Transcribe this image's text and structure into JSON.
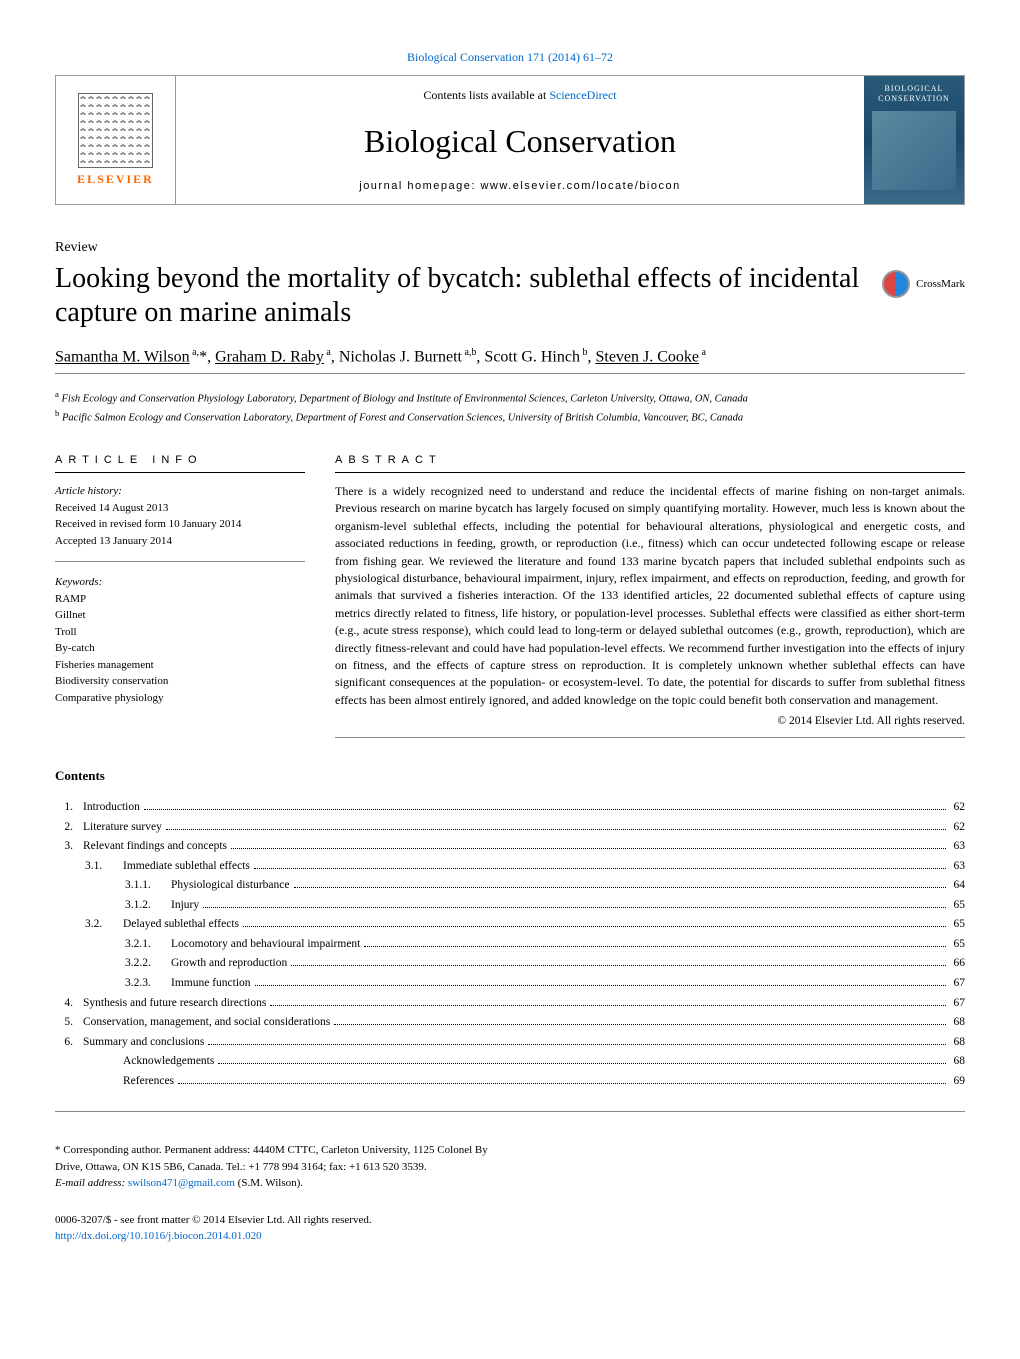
{
  "citation": "Biological Conservation 171 (2014) 61–72",
  "header": {
    "contents_prefix": "Contents lists available at ",
    "contents_link": "ScienceDirect",
    "journal_name": "Biological Conservation",
    "homepage_prefix": "journal homepage: ",
    "homepage_url": "www.elsevier.com/locate/biocon",
    "publisher": "ELSEVIER",
    "cover_title": "BIOLOGICAL CONSERVATION"
  },
  "article_type": "Review",
  "crossmark": "CrossMark",
  "title": "Looking beyond the mortality of bycatch: sublethal effects of incidental capture on marine animals",
  "authors_html": "<span class=\"underline\">Samantha M. Wilson</span><sup> a,</sup>*, <span class=\"underline\">Graham D. Raby</span><sup> a</sup>, Nicholas J. Burnett<sup> a,b</sup>, Scott G. Hinch<sup> b</sup>, <span class=\"underline\">Steven J. Cooke</span><sup> a</sup>",
  "affiliations": [
    {
      "sup": "a",
      "text": "Fish Ecology and Conservation Physiology Laboratory, Department of Biology and Institute of Environmental Sciences, Carleton University, Ottawa, ON, Canada"
    },
    {
      "sup": "b",
      "text": "Pacific Salmon Ecology and Conservation Laboratory, Department of Forest and Conservation Sciences, University of British Columbia, Vancouver, BC, Canada"
    }
  ],
  "info": {
    "head": "ARTICLE INFO",
    "history_label": "Article history:",
    "history": [
      "Received 14 August 2013",
      "Received in revised form 10 January 2014",
      "Accepted 13 January 2014"
    ],
    "keywords_label": "Keywords:",
    "keywords": [
      "RAMP",
      "Gillnet",
      "Troll",
      "By-catch",
      "Fisheries management",
      "Biodiversity conservation",
      "Comparative physiology"
    ]
  },
  "abstract": {
    "head": "ABSTRACT",
    "text": "There is a widely recognized need to understand and reduce the incidental effects of marine fishing on non-target animals. Previous research on marine bycatch has largely focused on simply quantifying mortality. However, much less is known about the organism-level sublethal effects, including the potential for behavioural alterations, physiological and energetic costs, and associated reductions in feeding, growth, or reproduction (i.e., fitness) which can occur undetected following escape or release from fishing gear. We reviewed the literature and found 133 marine bycatch papers that included sublethal endpoints such as physiological disturbance, behavioural impairment, injury, reflex impairment, and effects on reproduction, feeding, and growth for animals that survived a fisheries interaction. Of the 133 identified articles, 22 documented sublethal effects of capture using metrics directly related to fitness, life history, or population-level processes. Sublethal effects were classified as either short-term (e.g., acute stress response), which could lead to long-term or delayed sublethal outcomes (e.g., growth, reproduction), which are directly fitness-relevant and could have had population-level effects. We recommend further investigation into the effects of injury on fitness, and the effects of capture stress on reproduction. It is completely unknown whether sublethal effects can have significant consequences at the population- or ecosystem-level. To date, the potential for discards to suffer from sublethal fitness effects has been almost entirely ignored, and added knowledge on the topic could benefit both conservation and management.",
    "copyright": "© 2014 Elsevier Ltd. All rights reserved."
  },
  "contents_heading": "Contents",
  "toc": [
    {
      "num": "1.",
      "label": "Introduction",
      "page": "62",
      "level": 0
    },
    {
      "num": "2.",
      "label": "Literature survey",
      "page": "62",
      "level": 0
    },
    {
      "num": "3.",
      "label": "Relevant findings and concepts",
      "page": "63",
      "level": 0
    },
    {
      "num": "3.1.",
      "label": "Immediate sublethal effects",
      "page": "63",
      "level": 1
    },
    {
      "num": "3.1.1.",
      "label": "Physiological disturbance",
      "page": "64",
      "level": 2
    },
    {
      "num": "3.1.2.",
      "label": "Injury",
      "page": "65",
      "level": 2
    },
    {
      "num": "3.2.",
      "label": "Delayed sublethal effects",
      "page": "65",
      "level": 1
    },
    {
      "num": "3.2.1.",
      "label": "Locomotory and behavioural impairment",
      "page": "65",
      "level": 2
    },
    {
      "num": "3.2.2.",
      "label": "Growth and reproduction",
      "page": "66",
      "level": 2
    },
    {
      "num": "3.2.3.",
      "label": "Immune function",
      "page": "67",
      "level": 2
    },
    {
      "num": "4.",
      "label": "Synthesis and future research directions",
      "page": "67",
      "level": 0
    },
    {
      "num": "5.",
      "label": "Conservation, management, and social considerations",
      "page": "68",
      "level": 0
    },
    {
      "num": "6.",
      "label": "Summary and conclusions",
      "page": "68",
      "level": 0
    },
    {
      "num": "",
      "label": "Acknowledgements",
      "page": "68",
      "level": 3
    },
    {
      "num": "",
      "label": "References",
      "page": "69",
      "level": 3
    }
  ],
  "footer": {
    "corresponding": "* Corresponding author. Permanent address: 4440M CTTC, Carleton University, 1125 Colonel By Drive, Ottawa, ON K1S 5B6, Canada. Tel.: +1 778 994 3164; fax: +1 613 520 3539.",
    "email_label": "E-mail address: ",
    "email": "swilson471@gmail.com",
    "email_suffix": " (S.M. Wilson).",
    "issn": "0006-3207/$ - see front matter © 2014 Elsevier Ltd. All rights reserved.",
    "doi": "http://dx.doi.org/10.1016/j.biocon.2014.01.020"
  }
}
